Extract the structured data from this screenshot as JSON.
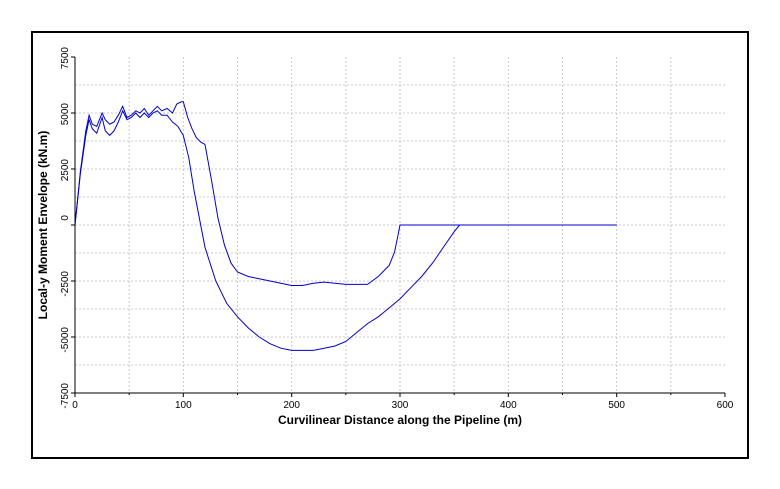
{
  "chart_data": {
    "type": "line",
    "title": "",
    "xlabel": "Curvilinear Distance along the Pipeline (m)",
    "ylabel": "Local-y Moment Envelope (kN.m)",
    "xlim": [
      0,
      600
    ],
    "ylim": [
      -7500,
      7500
    ],
    "xticks": [
      0,
      100,
      200,
      300,
      400,
      500,
      600
    ],
    "yticks": [
      7500,
      5000,
      2500,
      0,
      -2500,
      -5000,
      -7500
    ],
    "grid": true,
    "line_color": "#0000cc",
    "series": [
      {
        "x": [
          0,
          5,
          10,
          13,
          16,
          20,
          25,
          28,
          32,
          36,
          40,
          44,
          48,
          52,
          56,
          60,
          64,
          68,
          72,
          76,
          80,
          85,
          90,
          94,
          98,
          100,
          104,
          108,
          112,
          116,
          120,
          126,
          132,
          138,
          144,
          150,
          160,
          170,
          180,
          190,
          200,
          210,
          220,
          230,
          240,
          250,
          260,
          270,
          280,
          290,
          295,
          298,
          300,
          320,
          340,
          350,
          360,
          400,
          450,
          500
        ],
        "values": [
          0,
          2400,
          4200,
          4900,
          4500,
          4400,
          5000,
          4700,
          4500,
          4600,
          4900,
          5300,
          4800,
          4900,
          5100,
          5000,
          5200,
          4900,
          5100,
          5300,
          5100,
          5200,
          5000,
          5400,
          5500,
          5500,
          4800,
          4300,
          3900,
          3700,
          3600,
          2000,
          300,
          -900,
          -1700,
          -2100,
          -2300,
          -2400,
          -2500,
          -2600,
          -2700,
          -2700,
          -2600,
          -2550,
          -2600,
          -2650,
          -2650,
          -2650,
          -2300,
          -1800,
          -1200,
          -500,
          0,
          0,
          0,
          0,
          0,
          0,
          0,
          0
        ]
      },
      {
        "x": [
          0,
          5,
          10,
          13,
          16,
          20,
          25,
          28,
          32,
          36,
          40,
          44,
          48,
          52,
          56,
          60,
          64,
          68,
          72,
          76,
          80,
          85,
          90,
          95,
          100,
          105,
          110,
          120,
          130,
          140,
          150,
          160,
          170,
          180,
          190,
          200,
          210,
          220,
          230,
          240,
          250,
          260,
          270,
          280,
          290,
          300,
          310,
          320,
          330,
          340,
          350,
          355,
          360,
          400,
          450,
          500
        ],
        "values": [
          0,
          2300,
          4000,
          4700,
          4300,
          4100,
          4800,
          4200,
          4000,
          4200,
          4600,
          5100,
          4700,
          4800,
          5000,
          4800,
          5000,
          4800,
          5000,
          5100,
          4900,
          4900,
          4600,
          4400,
          4000,
          3000,
          1500,
          -1000,
          -2500,
          -3500,
          -4100,
          -4600,
          -5000,
          -5300,
          -5500,
          -5600,
          -5600,
          -5600,
          -5500,
          -5400,
          -5200,
          -4800,
          -4400,
          -4100,
          -3700,
          -3300,
          -2800,
          -2300,
          -1700,
          -1000,
          -300,
          0,
          0,
          0,
          0,
          0
        ]
      }
    ]
  }
}
